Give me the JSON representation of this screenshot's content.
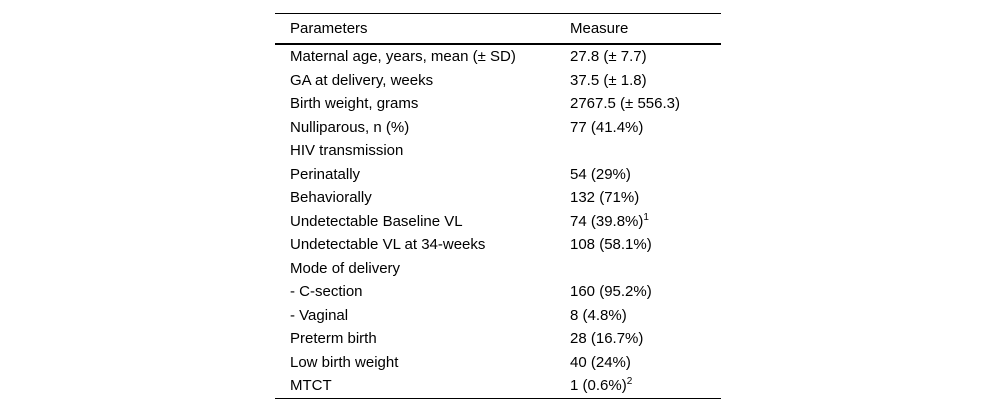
{
  "table": {
    "columns": {
      "parameters": "Parameters",
      "measure": "Measure"
    },
    "rows": [
      {
        "parameter": "Maternal age, years, mean (± SD)",
        "measure": "27.8 (± 7.7)",
        "sup": ""
      },
      {
        "parameter": "GA at delivery, weeks",
        "measure": "37.5 (± 1.8)",
        "sup": ""
      },
      {
        "parameter": "Birth weight, grams",
        "measure": "2767.5 (± 556.3)",
        "sup": ""
      },
      {
        "parameter": "Nulliparous, n (%)",
        "measure": "77 (41.4%)",
        "sup": ""
      },
      {
        "parameter": "HIV transmission",
        "measure": "",
        "sup": ""
      },
      {
        "parameter": "Perinatally",
        "measure": "54 (29%)",
        "sup": ""
      },
      {
        "parameter": "Behaviorally",
        "measure": "132 (71%)",
        "sup": ""
      },
      {
        "parameter": "Undetectable Baseline VL",
        "measure": "74 (39.8%)",
        "sup": "1"
      },
      {
        "parameter": "Undetectable VL at 34-weeks",
        "measure": "108 (58.1%)",
        "sup": ""
      },
      {
        "parameter": "Mode of delivery",
        "measure": "",
        "sup": ""
      },
      {
        "parameter": "- C-section",
        "measure": "160 (95.2%)",
        "sup": ""
      },
      {
        "parameter": "- Vaginal",
        "measure": "8 (4.8%)",
        "sup": ""
      },
      {
        "parameter": "Preterm birth",
        "measure": "28 (16.7%)",
        "sup": ""
      },
      {
        "parameter": "Low birth weight",
        "measure": "40 (24%)",
        "sup": ""
      },
      {
        "parameter": "MTCT",
        "measure": "1 (0.6%)",
        "sup": "2"
      }
    ]
  },
  "colors": {
    "text": "#000000",
    "background": "#ffffff",
    "rule": "#000000"
  }
}
